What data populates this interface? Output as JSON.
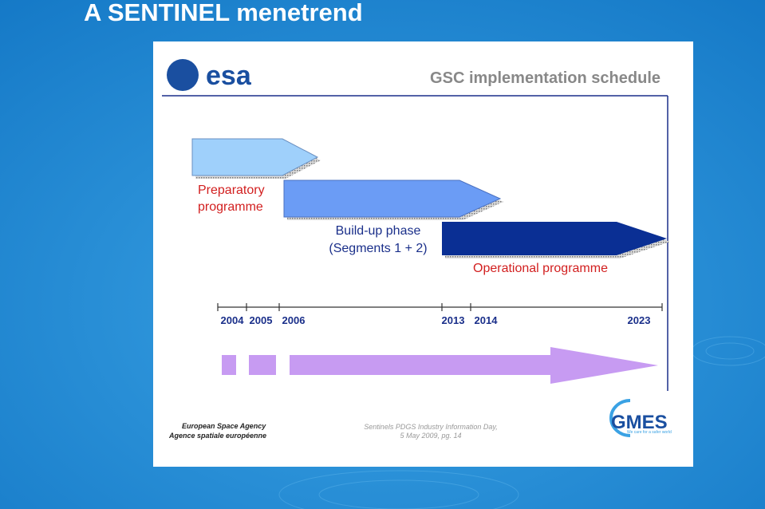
{
  "title": "A SENTINEL menetrend",
  "slide": {
    "logo": "esa",
    "heading": "GSC implementation schedule",
    "phases": [
      {
        "label": [
          "Preparatory",
          "programme"
        ]
      },
      {
        "label": [
          "Build-up phase",
          "(Segments 1 + 2)"
        ]
      },
      {
        "label": [
          "Operational programme"
        ]
      }
    ],
    "timeline": {
      "years": [
        "2004",
        "2005",
        "2006",
        "2013",
        "2014",
        "2023"
      ]
    },
    "footer": {
      "agency": [
        "European Space Agency",
        "Agence spatiale européenne"
      ],
      "event": [
        "Sentinels PDGS Industry Information Day,",
        "5 May 2009, pg. 14"
      ],
      "gmes_logo": "GMES",
      "gmes_tagline": "We care for a safer world"
    }
  }
}
